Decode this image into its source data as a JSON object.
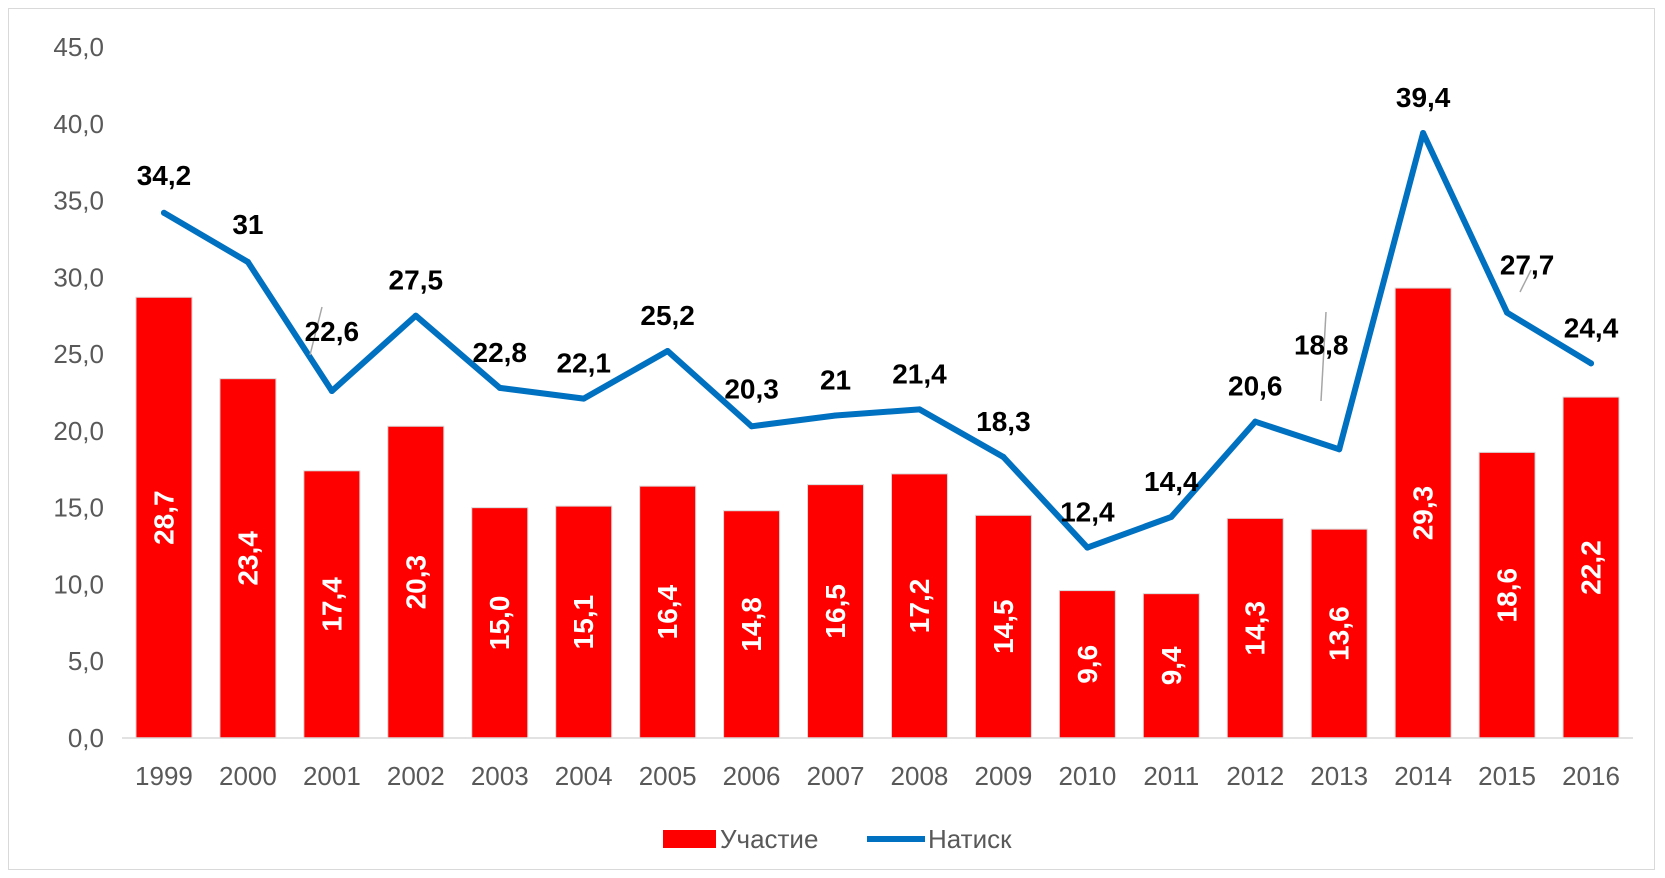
{
  "chart_data": {
    "type": "bar",
    "title": "",
    "xlabel": "",
    "ylabel": "",
    "categories": [
      "1999",
      "2000",
      "2001",
      "2002",
      "2003",
      "2004",
      "2005",
      "2006",
      "2007",
      "2008",
      "2009",
      "2010",
      "2011",
      "2012",
      "2013",
      "2014",
      "2015",
      "2016"
    ],
    "ylim": [
      0,
      45
    ],
    "yticks": [
      "0,0",
      "5,0",
      "10,0",
      "15,0",
      "20,0",
      "25,0",
      "30,0",
      "35,0",
      "40,0",
      "45,0"
    ],
    "grid": false,
    "legend_position": "bottom",
    "series": [
      {
        "name": "Участие",
        "type": "bar",
        "color": "#ff0000",
        "values": [
          28.7,
          23.4,
          17.4,
          20.3,
          15.0,
          15.1,
          16.4,
          14.8,
          16.5,
          17.2,
          14.5,
          9.6,
          9.4,
          14.3,
          13.6,
          29.3,
          18.6,
          22.2
        ],
        "labels": [
          "28,7",
          "23,4",
          "17,4",
          "20,3",
          "15,0",
          "15,1",
          "16,4",
          "14,8",
          "16,5",
          "17,2",
          "14,5",
          "9,6",
          "9,4",
          "14,3",
          "13,6",
          "29,3",
          "18,6",
          "22,2"
        ]
      },
      {
        "name": "Натиск",
        "type": "line",
        "color": "#0070c0",
        "values": [
          34.2,
          31,
          22.6,
          27.5,
          22.8,
          22.1,
          25.2,
          20.3,
          21,
          21.4,
          18.3,
          12.4,
          14.4,
          20.6,
          18.8,
          39.4,
          27.7,
          24.4
        ],
        "labels": [
          "34,2",
          "31",
          "22,6",
          "27,5",
          "22,8",
          "22,1",
          "25,2",
          "20,3",
          "21",
          "21,4",
          "18,3",
          "12,4",
          "14,4",
          "20,6",
          "18,8",
          "39,4",
          "27,7",
          "24,4"
        ]
      }
    ]
  }
}
